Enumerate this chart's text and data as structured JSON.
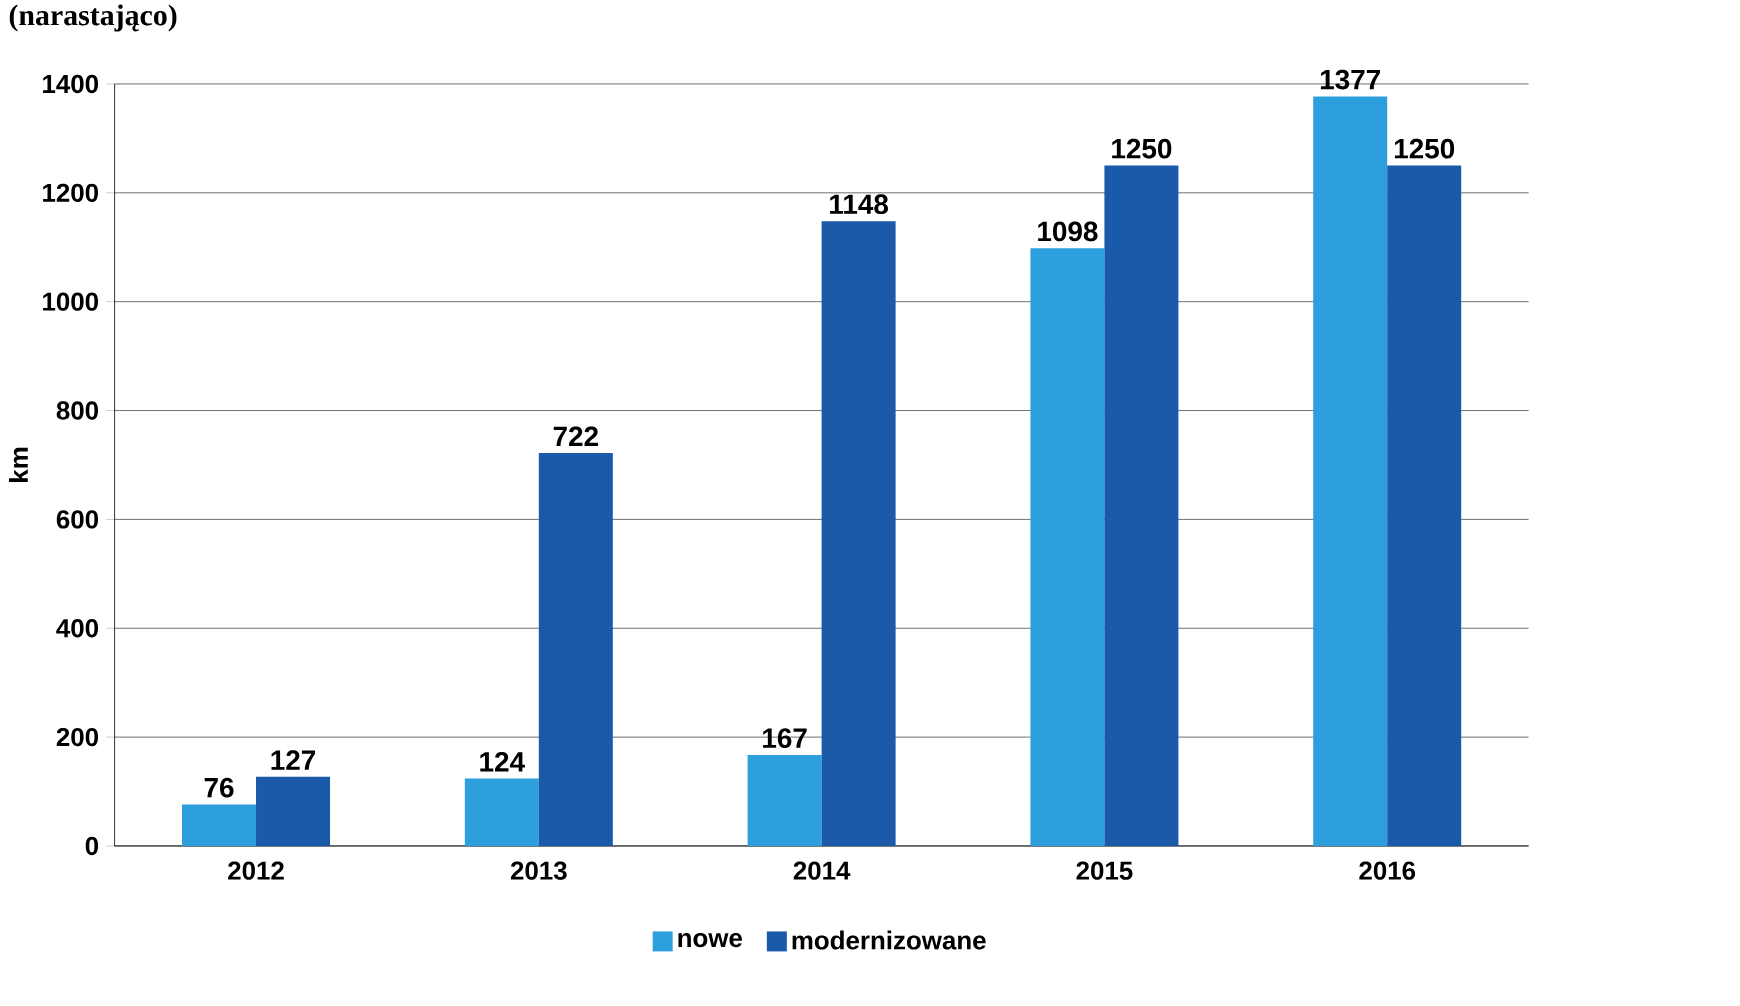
{
  "chart_data": {
    "type": "bar",
    "title": "(narastająco)",
    "ylabel": "km",
    "categories": [
      "2012",
      "2013",
      "2014",
      "2015",
      "2016"
    ],
    "series": [
      {
        "name": "nowe",
        "color": "#2e9fdd",
        "values": [
          76,
          124,
          167,
          1098,
          1377
        ]
      },
      {
        "name": "modernizowane",
        "color": "#1a5aa8",
        "values": [
          127,
          722,
          1148,
          1250,
          1250
        ]
      }
    ],
    "ylim": [
      0,
      1400
    ],
    "yticks": [
      0,
      200,
      400,
      600,
      800,
      1000,
      1200,
      1400
    ],
    "grid": "y",
    "legend": "bottom",
    "data_labels": true
  }
}
